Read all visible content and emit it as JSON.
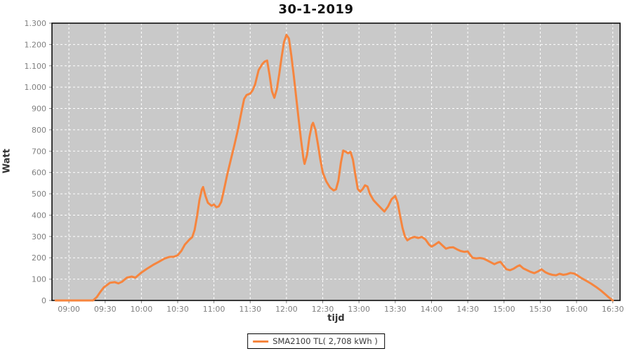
{
  "title": "30-1-2019",
  "axes": {
    "y_label": "Watt",
    "x_label": "tijd"
  },
  "legend": {
    "label": "SMA2100 TL( 2,708 kWh )"
  },
  "colors": {
    "series": "#f6853e",
    "plot_bg": "#c9c9c9",
    "grid": "#ffffff",
    "tick": "#7f7f7f",
    "tick_label": "#7f7f7f",
    "border": "#000000"
  },
  "chart_data": {
    "type": "line",
    "title": "30-1-2019",
    "xlabel": "tijd",
    "ylabel": "Watt",
    "legend_position": "bottom-center",
    "grid": "white dashed on gray",
    "x_ticks": [
      "09:00",
      "09:30",
      "10:00",
      "10:30",
      "11:00",
      "11:30",
      "12:00",
      "12:30",
      "13:00",
      "13:30",
      "14:00",
      "14:30",
      "15:00",
      "15:30",
      "16:00",
      "16:30"
    ],
    "y_tick_values": [
      0,
      100,
      200,
      300,
      400,
      500,
      600,
      700,
      800,
      900,
      1000,
      1100,
      1200,
      1300
    ],
    "y_tick_labels": [
      "0",
      "100",
      "200",
      "300",
      "400",
      "500",
      "600",
      "700",
      "800",
      "900",
      "1.000",
      "1.100",
      "1.200",
      "1.300"
    ],
    "xlim_minutes": [
      526,
      996
    ],
    "ylim": [
      0,
      1300
    ],
    "series": [
      {
        "name": "SMA2100 TL( 2,708 kWh )",
        "color": "#f6853e",
        "points_time_watt": [
          [
            "08:49",
            0
          ],
          [
            "09:20",
            0
          ],
          [
            "09:23",
            15
          ],
          [
            "09:26",
            40
          ],
          [
            "09:29",
            62
          ],
          [
            "09:31",
            70
          ],
          [
            "09:34",
            83
          ],
          [
            "09:38",
            86
          ],
          [
            "09:41",
            80
          ],
          [
            "09:44",
            88
          ],
          [
            "09:48",
            107
          ],
          [
            "09:52",
            112
          ],
          [
            "09:55",
            107
          ],
          [
            "10:00",
            131
          ],
          [
            "10:05",
            150
          ],
          [
            "10:10",
            168
          ],
          [
            "10:14",
            180
          ],
          [
            "10:19",
            196
          ],
          [
            "10:23",
            204
          ],
          [
            "10:27",
            205
          ],
          [
            "10:30",
            212
          ],
          [
            "10:33",
            232
          ],
          [
            "10:36",
            262
          ],
          [
            "10:40",
            287
          ],
          [
            "10:42",
            297
          ],
          [
            "10:44",
            330
          ],
          [
            "10:46",
            395
          ],
          [
            "10:48",
            470
          ],
          [
            "10:50",
            520
          ],
          [
            "10:51",
            532
          ],
          [
            "10:53",
            490
          ],
          [
            "10:55",
            458
          ],
          [
            "10:58",
            444
          ],
          [
            "11:00",
            450
          ],
          [
            "11:02",
            437
          ],
          [
            "11:04",
            441
          ],
          [
            "11:06",
            462
          ],
          [
            "11:08",
            510
          ],
          [
            "11:11",
            590
          ],
          [
            "11:14",
            660
          ],
          [
            "11:17",
            730
          ],
          [
            "11:20",
            805
          ],
          [
            "11:23",
            890
          ],
          [
            "11:25",
            945
          ],
          [
            "11:27",
            963
          ],
          [
            "11:30",
            970
          ],
          [
            "11:32",
            985
          ],
          [
            "11:34",
            1012
          ],
          [
            "11:37",
            1080
          ],
          [
            "11:40",
            1108
          ],
          [
            "11:42",
            1120
          ],
          [
            "11:44",
            1125
          ],
          [
            "11:46",
            1058
          ],
          [
            "11:48",
            980
          ],
          [
            "11:50",
            950
          ],
          [
            "11:52",
            990
          ],
          [
            "11:54",
            1060
          ],
          [
            "11:56",
            1140
          ],
          [
            "11:58",
            1212
          ],
          [
            "12:00",
            1245
          ],
          [
            "12:02",
            1228
          ],
          [
            "12:04",
            1150
          ],
          [
            "12:06",
            1055
          ],
          [
            "12:08",
            955
          ],
          [
            "12:10",
            855
          ],
          [
            "12:12",
            755
          ],
          [
            "12:14",
            668
          ],
          [
            "12:15",
            640
          ],
          [
            "12:17",
            682
          ],
          [
            "12:19",
            765
          ],
          [
            "12:21",
            822
          ],
          [
            "12:22",
            833
          ],
          [
            "12:24",
            800
          ],
          [
            "12:26",
            733
          ],
          [
            "12:28",
            662
          ],
          [
            "12:30",
            600
          ],
          [
            "12:33",
            558
          ],
          [
            "12:36",
            530
          ],
          [
            "12:39",
            516
          ],
          [
            "12:41",
            521
          ],
          [
            "12:43",
            562
          ],
          [
            "12:45",
            645
          ],
          [
            "12:47",
            703
          ],
          [
            "12:49",
            697
          ],
          [
            "12:51",
            690
          ],
          [
            "12:53",
            696
          ],
          [
            "12:55",
            660
          ],
          [
            "12:57",
            590
          ],
          [
            "12:59",
            523
          ],
          [
            "13:01",
            510
          ],
          [
            "13:03",
            522
          ],
          [
            "13:05",
            540
          ],
          [
            "13:07",
            534
          ],
          [
            "13:09",
            500
          ],
          [
            "13:12",
            470
          ],
          [
            "13:15",
            452
          ],
          [
            "13:18",
            434
          ],
          [
            "13:21",
            417
          ],
          [
            "13:24",
            440
          ],
          [
            "13:27",
            475
          ],
          [
            "13:30",
            490
          ],
          [
            "13:32",
            458
          ],
          [
            "13:34",
            398
          ],
          [
            "13:36",
            340
          ],
          [
            "13:38",
            300
          ],
          [
            "13:40",
            282
          ],
          [
            "13:43",
            293
          ],
          [
            "13:46",
            298
          ],
          [
            "13:49",
            293
          ],
          [
            "13:52",
            298
          ],
          [
            "13:55",
            286
          ],
          [
            "13:58",
            262
          ],
          [
            "14:00",
            252
          ],
          [
            "14:03",
            262
          ],
          [
            "14:06",
            274
          ],
          [
            "14:09",
            258
          ],
          [
            "14:12",
            243
          ],
          [
            "14:15",
            248
          ],
          [
            "14:18",
            249
          ],
          [
            "14:21",
            240
          ],
          [
            "14:24",
            232
          ],
          [
            "14:27",
            228
          ],
          [
            "14:30",
            230
          ],
          [
            "14:32",
            214
          ],
          [
            "14:34",
            200
          ],
          [
            "14:37",
            197
          ],
          [
            "14:40",
            199
          ],
          [
            "14:43",
            196
          ],
          [
            "14:46",
            188
          ],
          [
            "14:49",
            179
          ],
          [
            "14:52",
            170
          ],
          [
            "14:55",
            178
          ],
          [
            "14:57",
            181
          ],
          [
            "15:00",
            160
          ],
          [
            "15:02",
            146
          ],
          [
            "15:05",
            142
          ],
          [
            "15:08",
            149
          ],
          [
            "15:11",
            160
          ],
          [
            "15:13",
            165
          ],
          [
            "15:16",
            150
          ],
          [
            "15:19",
            142
          ],
          [
            "15:22",
            134
          ],
          [
            "15:25",
            128
          ],
          [
            "15:28",
            136
          ],
          [
            "15:31",
            146
          ],
          [
            "15:34",
            133
          ],
          [
            "15:37",
            125
          ],
          [
            "15:40",
            120
          ],
          [
            "15:43",
            118
          ],
          [
            "15:46",
            125
          ],
          [
            "15:49",
            120
          ],
          [
            "15:52",
            123
          ],
          [
            "15:55",
            129
          ],
          [
            "15:58",
            126
          ],
          [
            "16:00",
            120
          ],
          [
            "16:04",
            105
          ],
          [
            "16:08",
            92
          ],
          [
            "16:12",
            79
          ],
          [
            "16:16",
            64
          ],
          [
            "16:20",
            47
          ],
          [
            "16:24",
            28
          ],
          [
            "16:27",
            13
          ],
          [
            "16:30",
            0
          ]
        ]
      }
    ]
  }
}
